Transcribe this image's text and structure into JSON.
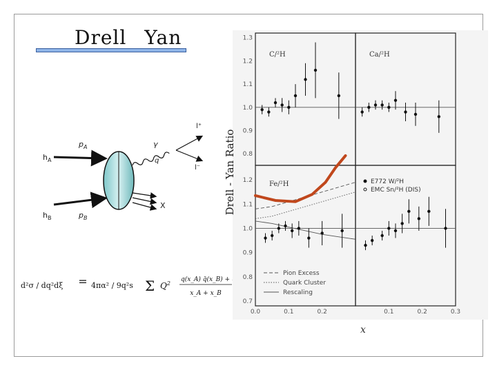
{
  "slide": {
    "title_part1": "Drell",
    "title_part2": "Yan",
    "title_bar_color": "#8fb5e8",
    "highlight_curve_color": "#c0471c"
  },
  "diagram": {
    "hadron_a": "h",
    "hadron_a_sub": "A",
    "hadron_b": "h",
    "hadron_b_sub": "B",
    "momentum_a": "p",
    "momentum_a_sub": "A",
    "momentum_b": "p",
    "momentum_b_sub": "B",
    "photon": "γ",
    "photon_q": "q",
    "lepton_plus": "l⁺",
    "lepton_minus": "l⁻",
    "remnant": "X"
  },
  "formula": {
    "lhs": "d²σ / dq²dξ",
    "prefactor": "4πα² / 9q²s",
    "sum": "Σ",
    "charge": "Q",
    "numerator": "q(x_A) q̄(x_B) + q̄(x_A) q(x_B)",
    "denominator": "x_A + x_B"
  },
  "chart_data": {
    "type": "scatter",
    "ylabel": "Drell - Yan Ratio",
    "xlabel": "x",
    "panels": [
      {
        "label": "C/²H",
        "x_ticks": [],
        "y_ticks": [
          "1.3",
          "1.2",
          "1.1",
          "1.0",
          "0.9",
          "0.8"
        ],
        "points": [
          {
            "x": 0.02,
            "y": 0.99,
            "err": 0.02
          },
          {
            "x": 0.04,
            "y": 0.98,
            "err": 0.02
          },
          {
            "x": 0.06,
            "y": 1.02,
            "err": 0.02
          },
          {
            "x": 0.08,
            "y": 1.01,
            "err": 0.03
          },
          {
            "x": 0.1,
            "y": 1.0,
            "err": 0.03
          },
          {
            "x": 0.12,
            "y": 1.05,
            "err": 0.05
          },
          {
            "x": 0.15,
            "y": 1.12,
            "err": 0.07
          },
          {
            "x": 0.18,
            "y": 1.16,
            "err": 0.12
          },
          {
            "x": 0.25,
            "y": 1.05,
            "err": 0.1
          }
        ]
      },
      {
        "label": "Ca/²H",
        "x_ticks": [],
        "y_ticks": [],
        "points": [
          {
            "x": 0.02,
            "y": 0.98,
            "err": 0.02
          },
          {
            "x": 0.04,
            "y": 1.0,
            "err": 0.02
          },
          {
            "x": 0.06,
            "y": 1.01,
            "err": 0.02
          },
          {
            "x": 0.08,
            "y": 1.01,
            "err": 0.02
          },
          {
            "x": 0.1,
            "y": 1.0,
            "err": 0.02
          },
          {
            "x": 0.12,
            "y": 1.03,
            "err": 0.04
          },
          {
            "x": 0.15,
            "y": 0.98,
            "err": 0.04
          },
          {
            "x": 0.18,
            "y": 0.97,
            "err": 0.05
          },
          {
            "x": 0.25,
            "y": 0.96,
            "err": 0.07
          }
        ]
      },
      {
        "label": "Fe/²H",
        "x_ticks": [
          "0.0",
          "0.1",
          "0.2"
        ],
        "y_ticks": [
          "1.2",
          "1.1",
          "1.0",
          "0.9",
          "0.8",
          "0.7"
        ],
        "points": [
          {
            "x": 0.03,
            "y": 0.96,
            "err": 0.02
          },
          {
            "x": 0.05,
            "y": 0.97,
            "err": 0.02
          },
          {
            "x": 0.07,
            "y": 1.0,
            "err": 0.02
          },
          {
            "x": 0.09,
            "y": 1.01,
            "err": 0.02
          },
          {
            "x": 0.11,
            "y": 0.99,
            "err": 0.03
          },
          {
            "x": 0.13,
            "y": 1.0,
            "err": 0.03
          },
          {
            "x": 0.16,
            "y": 0.96,
            "err": 0.04
          },
          {
            "x": 0.2,
            "y": 0.98,
            "err": 0.05
          },
          {
            "x": 0.26,
            "y": 0.99,
            "err": 0.07
          }
        ],
        "highlight_curve": [
          [
            0.0,
            1.135
          ],
          [
            0.06,
            1.115
          ],
          [
            0.12,
            1.11
          ],
          [
            0.17,
            1.14
          ],
          [
            0.21,
            1.19
          ],
          [
            0.24,
            1.25
          ],
          [
            0.27,
            1.3
          ]
        ],
        "models": [
          {
            "name": "Pion Excess",
            "x": [
              0.0,
              0.05,
              0.1,
              0.15,
              0.2,
              0.25,
              0.3
            ],
            "y": [
              1.08,
              1.09,
              1.11,
              1.13,
              1.15,
              1.17,
              1.19
            ]
          },
          {
            "name": "Quark Cluster",
            "x": [
              0.0,
              0.05,
              0.1,
              0.15,
              0.2,
              0.25,
              0.3
            ],
            "y": [
              1.04,
              1.05,
              1.07,
              1.09,
              1.11,
              1.13,
              1.15
            ]
          },
          {
            "name": "Rescaling",
            "x": [
              0.0,
              0.05,
              0.1,
              0.15,
              0.2,
              0.25,
              0.3
            ],
            "y": [
              1.03,
              1.02,
              1.005,
              0.99,
              0.975,
              0.965,
              0.955
            ]
          }
        ]
      },
      {
        "label": "",
        "x_ticks": [
          "0.1",
          "0.2",
          "0.3"
        ],
        "y_ticks": [],
        "legend": [
          "E772 W/²H",
          "EMC Sn/²H (DIS)"
        ],
        "points": [
          {
            "x": 0.03,
            "y": 0.93,
            "err": 0.02
          },
          {
            "x": 0.05,
            "y": 0.95,
            "err": 0.02
          },
          {
            "x": 0.08,
            "y": 0.97,
            "err": 0.02
          },
          {
            "x": 0.1,
            "y": 1.0,
            "err": 0.03
          },
          {
            "x": 0.12,
            "y": 0.99,
            "err": 0.03
          },
          {
            "x": 0.14,
            "y": 1.02,
            "err": 0.04
          },
          {
            "x": 0.16,
            "y": 1.07,
            "err": 0.05
          },
          {
            "x": 0.19,
            "y": 1.04,
            "err": 0.05
          },
          {
            "x": 0.22,
            "y": 1.07,
            "err": 0.06
          },
          {
            "x": 0.27,
            "y": 1.0,
            "err": 0.08
          }
        ]
      }
    ]
  }
}
